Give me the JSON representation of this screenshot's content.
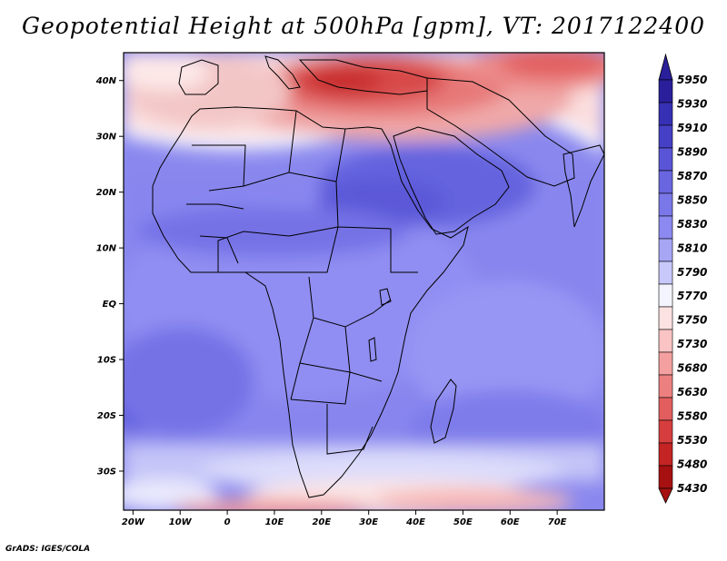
{
  "title": "Geopotential Height at 500hPa [gpm], VT: 2017122400",
  "credit": "GrADS: IGES/COLA",
  "map": {
    "region": "Africa, Mediterranean, Middle East and western Indian Ocean",
    "lon_range": [
      -22,
      80
    ],
    "lat_range": [
      -37,
      45
    ],
    "lat_ticks": [
      "40N",
      "30N",
      "20N",
      "10N",
      "EQ",
      "10S",
      "20S",
      "30S"
    ],
    "lon_ticks": [
      "20W",
      "10W",
      "0",
      "10E",
      "20E",
      "30E",
      "40E",
      "50E",
      "60E",
      "70E"
    ]
  },
  "colorbar": {
    "orientation": "vertical",
    "position": "right",
    "labels": [
      "5950",
      "5930",
      "5910",
      "5890",
      "5870",
      "5850",
      "5830",
      "5810",
      "5790",
      "5770",
      "5750",
      "5730",
      "5680",
      "5630",
      "5580",
      "5530",
      "5480",
      "5430"
    ],
    "colors": [
      "#2a1f9a",
      "#3630b4",
      "#4640c6",
      "#5a55d6",
      "#6a66e0",
      "#7a78e8",
      "#8c8af0",
      "#a6a6f5",
      "#c8c8fa",
      "#f4f4fe",
      "#fde2e2",
      "#fac4c4",
      "#f4a0a0",
      "#ec8080",
      "#e25e5e",
      "#d63e3e",
      "#c42424",
      "#a61010"
    ]
  }
}
